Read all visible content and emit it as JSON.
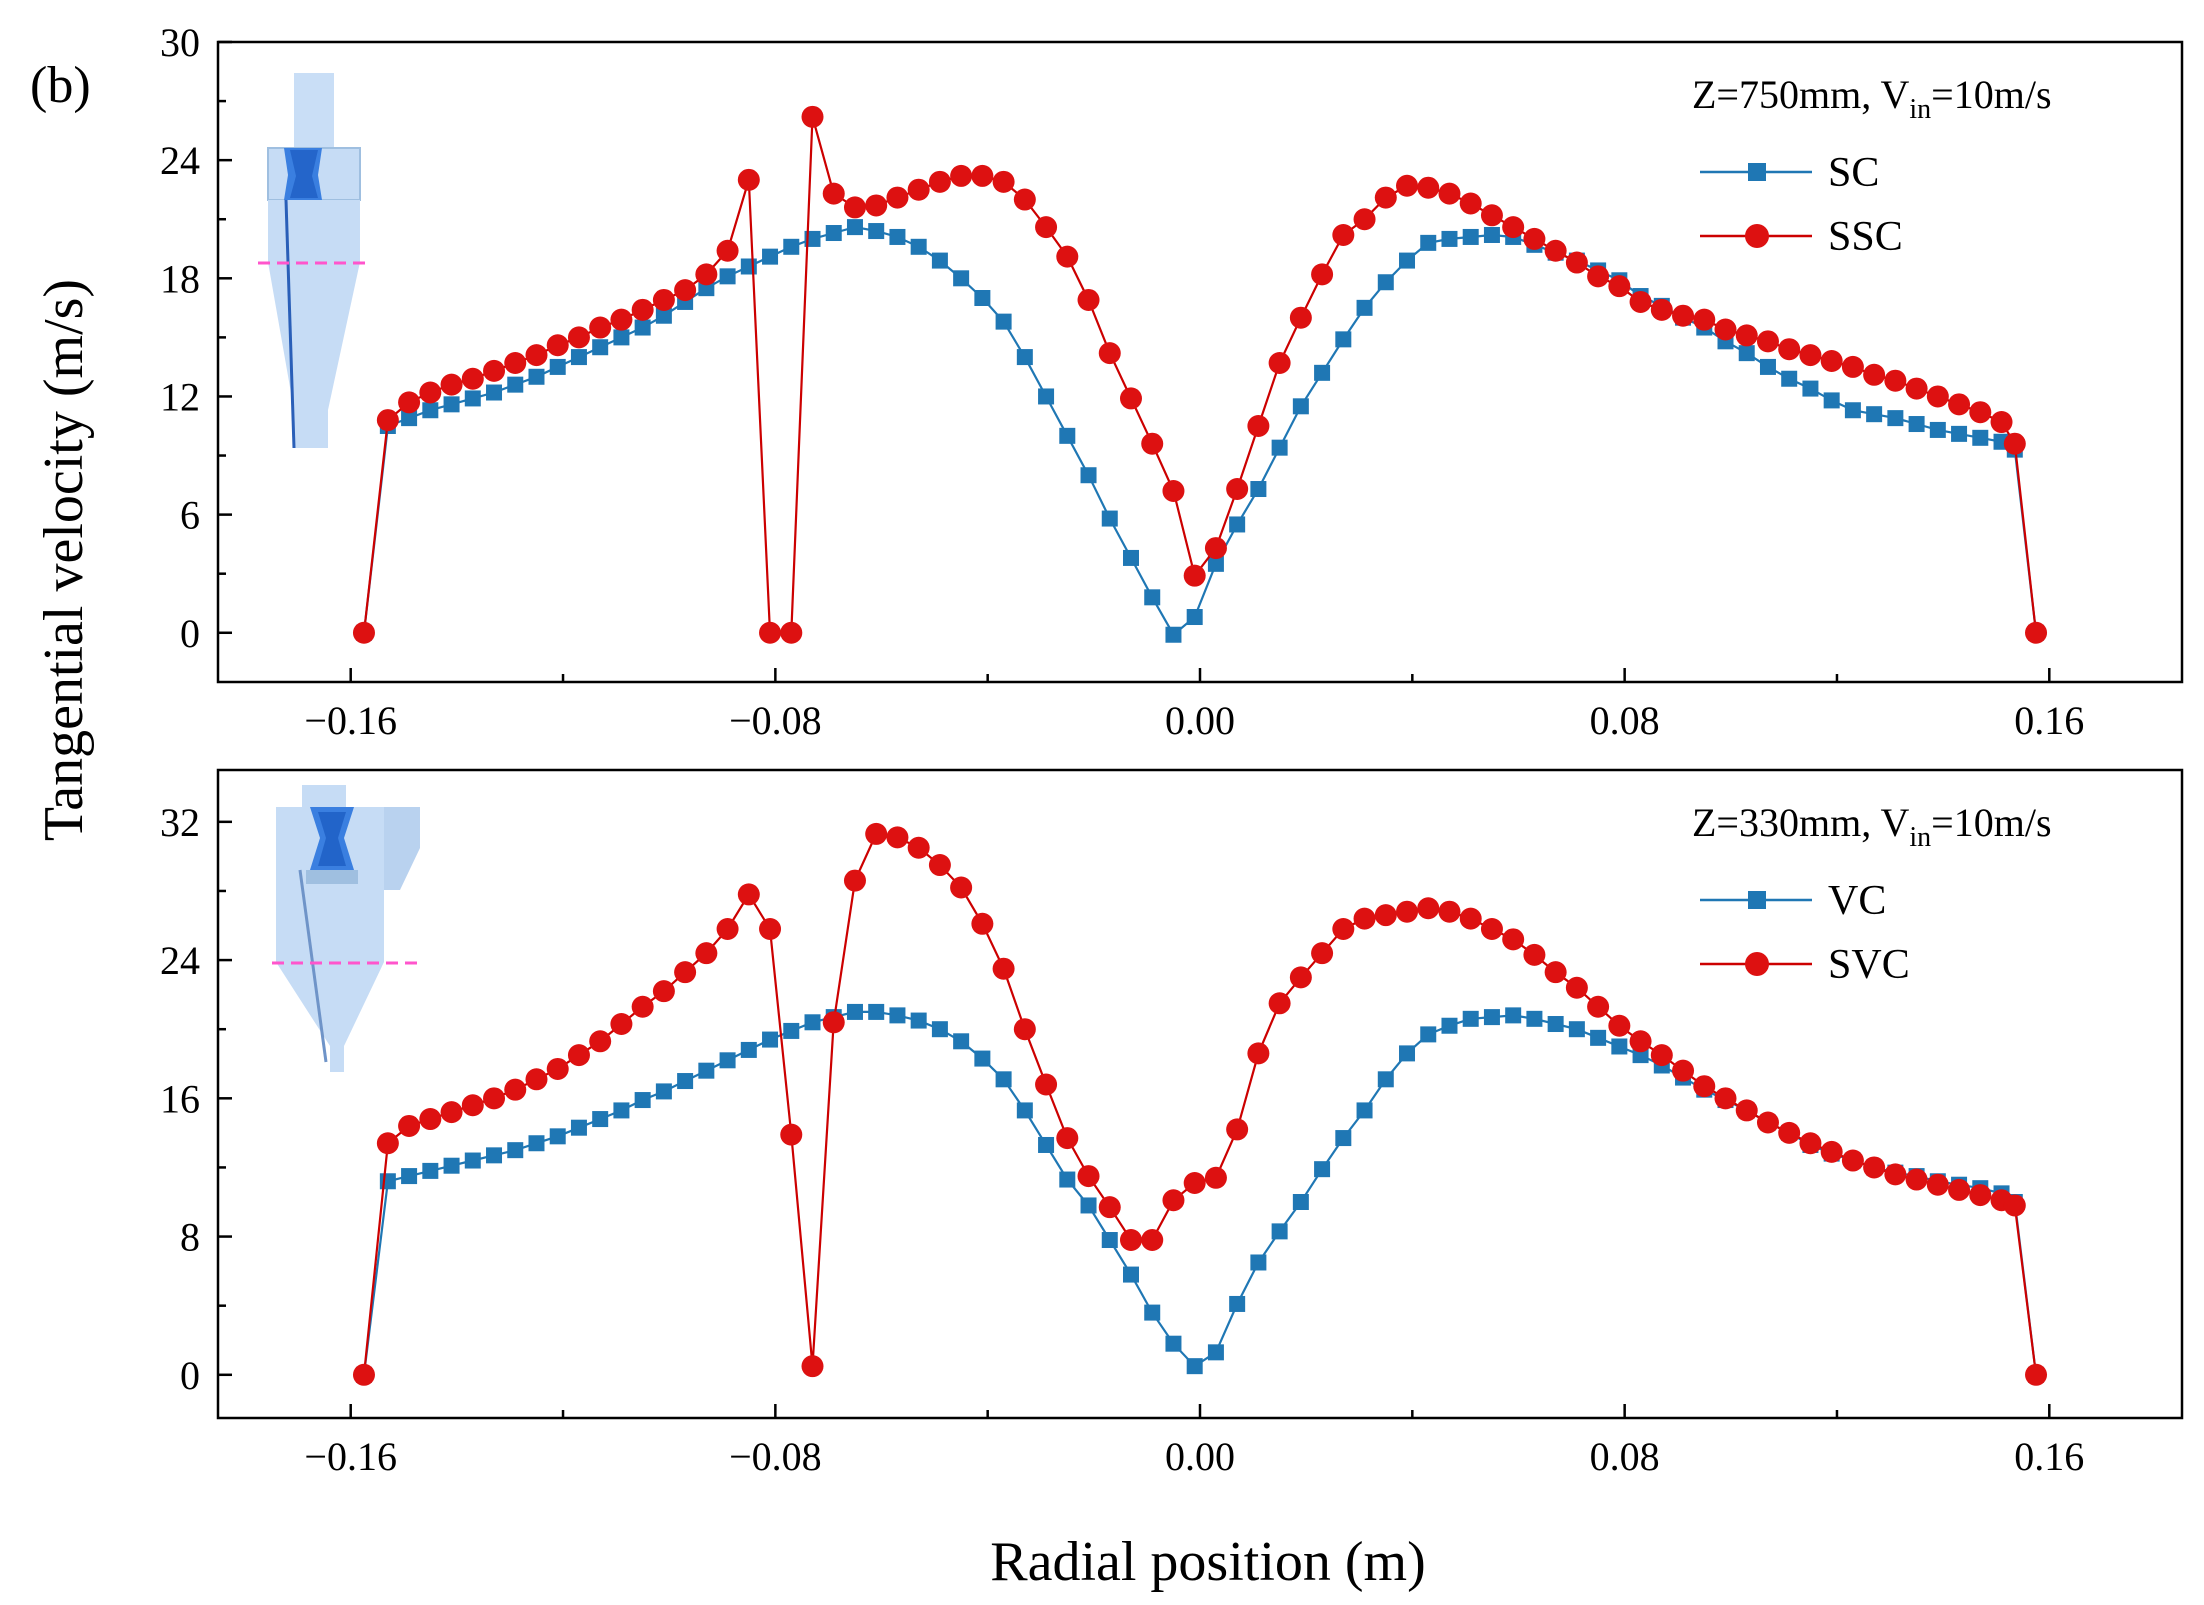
{
  "panel_label": "(b)",
  "ylabel": "Tangential velocity (m/s)",
  "xlabel": "Radial position (m)",
  "colors": {
    "blue": "#1f77b4",
    "red": "#cc0000",
    "marker_red": "#dd1111",
    "inset_body": "#c6dcf5",
    "inset_core": "#3a7fe0",
    "inset_line": "#ff55cc"
  },
  "chart_data": [
    {
      "type": "line",
      "annotation": {
        "prefix": "Z=750mm, V",
        "sub": "in",
        "suffix": "=10m/s"
      },
      "xlim": [
        -0.185,
        0.185
      ],
      "ylim": [
        -2.5,
        30
      ],
      "xticks": [
        -0.16,
        -0.08,
        0.0,
        0.08,
        0.16
      ],
      "xtick_labels": [
        "−0.16",
        "−0.08",
        "0.00",
        "0.08",
        "0.16"
      ],
      "yticks": [
        0,
        6,
        12,
        18,
        24,
        30
      ],
      "ytick_labels": [
        "0",
        "6",
        "12",
        "18",
        "24",
        "30"
      ],
      "legend": [
        "SC",
        "SSC"
      ],
      "series": [
        {
          "name": "SC",
          "marker": "square",
          "color": "blue",
          "x": [
            -0.1575,
            -0.153,
            -0.149,
            -0.145,
            -0.141,
            -0.137,
            -0.133,
            -0.129,
            -0.125,
            -0.121,
            -0.117,
            -0.113,
            -0.109,
            -0.105,
            -0.101,
            -0.097,
            -0.093,
            -0.089,
            -0.085,
            -0.081,
            -0.077,
            -0.073,
            -0.069,
            -0.065,
            -0.061,
            -0.057,
            -0.053,
            -0.049,
            -0.045,
            -0.041,
            -0.037,
            -0.033,
            -0.029,
            -0.025,
            -0.021,
            -0.017,
            -0.013,
            -0.009,
            -0.005,
            -0.001,
            0.003,
            0.007,
            0.011,
            0.015,
            0.019,
            0.023,
            0.027,
            0.031,
            0.035,
            0.039,
            0.043,
            0.047,
            0.051,
            0.055,
            0.059,
            0.063,
            0.067,
            0.071,
            0.075,
            0.079,
            0.083,
            0.087,
            0.091,
            0.095,
            0.099,
            0.103,
            0.107,
            0.111,
            0.115,
            0.119,
            0.123,
            0.127,
            0.131,
            0.135,
            0.139,
            0.143,
            0.147,
            0.151,
            0.1535,
            0.1575
          ],
          "y": [
            0,
            10.5,
            10.9,
            11.3,
            11.6,
            11.9,
            12.2,
            12.6,
            13.0,
            13.5,
            14.0,
            14.5,
            15.0,
            15.5,
            16.1,
            16.8,
            17.5,
            18.1,
            18.6,
            19.1,
            19.6,
            20.0,
            20.3,
            20.6,
            20.4,
            20.1,
            19.6,
            18.9,
            18.0,
            17.0,
            15.8,
            14.0,
            12.0,
            10.0,
            8.0,
            5.8,
            3.8,
            1.8,
            -0.1,
            0.8,
            3.5,
            5.5,
            7.3,
            9.4,
            11.5,
            13.2,
            14.9,
            16.5,
            17.8,
            18.9,
            19.8,
            20.0,
            20.1,
            20.2,
            20.1,
            19.7,
            19.3,
            18.9,
            18.4,
            17.9,
            17.1,
            16.6,
            16.0,
            15.5,
            14.8,
            14.2,
            13.5,
            12.9,
            12.4,
            11.8,
            11.3,
            11.1,
            10.9,
            10.6,
            10.3,
            10.1,
            9.9,
            9.7,
            9.3,
            0
          ]
        },
        {
          "name": "SSC",
          "marker": "circle",
          "color": "red",
          "x": [
            -0.1575,
            -0.153,
            -0.149,
            -0.145,
            -0.141,
            -0.137,
            -0.133,
            -0.129,
            -0.125,
            -0.121,
            -0.117,
            -0.113,
            -0.109,
            -0.105,
            -0.101,
            -0.097,
            -0.093,
            -0.089,
            -0.085,
            -0.081,
            -0.077,
            -0.073,
            -0.069,
            -0.065,
            -0.061,
            -0.057,
            -0.053,
            -0.049,
            -0.045,
            -0.041,
            -0.037,
            -0.033,
            -0.029,
            -0.025,
            -0.021,
            -0.017,
            -0.013,
            -0.009,
            -0.005,
            -0.001,
            0.003,
            0.007,
            0.011,
            0.015,
            0.019,
            0.023,
            0.027,
            0.031,
            0.035,
            0.039,
            0.043,
            0.047,
            0.051,
            0.055,
            0.059,
            0.063,
            0.067,
            0.071,
            0.075,
            0.079,
            0.083,
            0.087,
            0.091,
            0.095,
            0.099,
            0.103,
            0.107,
            0.111,
            0.115,
            0.119,
            0.123,
            0.127,
            0.131,
            0.135,
            0.139,
            0.143,
            0.147,
            0.151,
            0.1535,
            0.1575
          ],
          "y": [
            0,
            10.8,
            11.7,
            12.2,
            12.6,
            12.9,
            13.3,
            13.7,
            14.1,
            14.6,
            15.0,
            15.5,
            15.9,
            16.4,
            16.9,
            17.4,
            18.2,
            19.4,
            23.0,
            0,
            0,
            26.2,
            22.3,
            21.6,
            21.7,
            22.1,
            22.5,
            22.9,
            23.2,
            23.2,
            22.9,
            22.0,
            20.6,
            19.1,
            16.9,
            14.2,
            11.9,
            9.6,
            7.2,
            2.9,
            4.3,
            7.3,
            10.5,
            13.7,
            16.0,
            18.2,
            20.2,
            21.0,
            22.1,
            22.7,
            22.6,
            22.3,
            21.8,
            21.2,
            20.6,
            20.0,
            19.4,
            18.8,
            18.1,
            17.6,
            16.8,
            16.4,
            16.1,
            15.9,
            15.4,
            15.1,
            14.8,
            14.4,
            14.1,
            13.8,
            13.5,
            13.1,
            12.8,
            12.4,
            12.0,
            11.6,
            11.2,
            10.7,
            9.6,
            0
          ]
        }
      ]
    },
    {
      "type": "line",
      "annotation": {
        "prefix": "Z=330mm, V",
        "sub": "in",
        "suffix": "=10m/s"
      },
      "xlim": [
        -0.185,
        0.185
      ],
      "ylim": [
        -2.5,
        35
      ],
      "xticks": [
        -0.16,
        -0.08,
        0.0,
        0.08,
        0.16
      ],
      "xtick_labels": [
        "−0.16",
        "−0.08",
        "0.00",
        "0.08",
        "0.16"
      ],
      "yticks": [
        0,
        8,
        16,
        24,
        32
      ],
      "ytick_labels": [
        "0",
        "8",
        "16",
        "24",
        "32"
      ],
      "legend": [
        "VC",
        "SVC"
      ],
      "series": [
        {
          "name": "VC",
          "marker": "square",
          "color": "blue",
          "x": [
            -0.1575,
            -0.153,
            -0.149,
            -0.145,
            -0.141,
            -0.137,
            -0.133,
            -0.129,
            -0.125,
            -0.121,
            -0.117,
            -0.113,
            -0.109,
            -0.105,
            -0.101,
            -0.097,
            -0.093,
            -0.089,
            -0.085,
            -0.081,
            -0.077,
            -0.073,
            -0.069,
            -0.065,
            -0.061,
            -0.057,
            -0.053,
            -0.049,
            -0.045,
            -0.041,
            -0.037,
            -0.033,
            -0.029,
            -0.025,
            -0.021,
            -0.017,
            -0.013,
            -0.009,
            -0.005,
            -0.001,
            0.003,
            0.007,
            0.011,
            0.015,
            0.019,
            0.023,
            0.027,
            0.031,
            0.035,
            0.039,
            0.043,
            0.047,
            0.051,
            0.055,
            0.059,
            0.063,
            0.067,
            0.071,
            0.075,
            0.079,
            0.083,
            0.087,
            0.091,
            0.095,
            0.099,
            0.103,
            0.107,
            0.111,
            0.115,
            0.119,
            0.123,
            0.127,
            0.131,
            0.135,
            0.139,
            0.143,
            0.147,
            0.151,
            0.1535,
            0.1575
          ],
          "y": [
            0,
            11.2,
            11.5,
            11.8,
            12.1,
            12.4,
            12.7,
            13.0,
            13.4,
            13.8,
            14.3,
            14.8,
            15.3,
            15.9,
            16.4,
            17.0,
            17.6,
            18.2,
            18.8,
            19.4,
            19.9,
            20.4,
            20.7,
            21.0,
            21.0,
            20.8,
            20.5,
            20.0,
            19.3,
            18.3,
            17.1,
            15.3,
            13.3,
            11.3,
            9.8,
            7.8,
            5.8,
            3.6,
            1.8,
            0.5,
            1.3,
            4.1,
            6.5,
            8.3,
            10.0,
            11.9,
            13.7,
            15.3,
            17.1,
            18.6,
            19.7,
            20.2,
            20.6,
            20.7,
            20.8,
            20.6,
            20.3,
            20.0,
            19.5,
            19.0,
            18.5,
            17.9,
            17.2,
            16.5,
            15.9,
            15.3,
            14.6,
            14.0,
            13.3,
            12.8,
            12.4,
            12.0,
            11.7,
            11.5,
            11.2,
            11.0,
            10.8,
            10.5,
            10.0,
            0
          ]
        },
        {
          "name": "SVC",
          "marker": "circle",
          "color": "red",
          "x": [
            -0.1575,
            -0.153,
            -0.149,
            -0.145,
            -0.141,
            -0.137,
            -0.133,
            -0.129,
            -0.125,
            -0.121,
            -0.117,
            -0.113,
            -0.109,
            -0.105,
            -0.101,
            -0.097,
            -0.093,
            -0.089,
            -0.085,
            -0.081,
            -0.077,
            -0.073,
            -0.069,
            -0.065,
            -0.061,
            -0.057,
            -0.053,
            -0.049,
            -0.045,
            -0.041,
            -0.037,
            -0.033,
            -0.029,
            -0.025,
            -0.021,
            -0.017,
            -0.013,
            -0.009,
            -0.005,
            -0.001,
            0.003,
            0.007,
            0.011,
            0.015,
            0.019,
            0.023,
            0.027,
            0.031,
            0.035,
            0.039,
            0.043,
            0.047,
            0.051,
            0.055,
            0.059,
            0.063,
            0.067,
            0.071,
            0.075,
            0.079,
            0.083,
            0.087,
            0.091,
            0.095,
            0.099,
            0.103,
            0.107,
            0.111,
            0.115,
            0.119,
            0.123,
            0.127,
            0.131,
            0.135,
            0.139,
            0.143,
            0.147,
            0.151,
            0.1535,
            0.1575
          ],
          "y": [
            0,
            13.4,
            14.4,
            14.8,
            15.2,
            15.6,
            16.0,
            16.5,
            17.1,
            17.7,
            18.5,
            19.3,
            20.3,
            21.3,
            22.2,
            23.3,
            24.4,
            25.8,
            27.8,
            25.8,
            13.9,
            0.5,
            20.4,
            28.6,
            31.3,
            31.1,
            30.5,
            29.5,
            28.2,
            26.1,
            23.5,
            20.0,
            16.8,
            13.7,
            11.5,
            9.7,
            7.8,
            7.8,
            10.1,
            11.1,
            11.4,
            14.2,
            18.6,
            21.5,
            23.0,
            24.4,
            25.8,
            26.4,
            26.6,
            26.8,
            27.0,
            26.8,
            26.4,
            25.8,
            25.2,
            24.3,
            23.3,
            22.4,
            21.3,
            20.2,
            19.3,
            18.5,
            17.6,
            16.7,
            16.0,
            15.3,
            14.6,
            14.0,
            13.4,
            12.9,
            12.4,
            12.0,
            11.6,
            11.3,
            11.0,
            10.7,
            10.4,
            10.1,
            9.8,
            0
          ]
        }
      ]
    }
  ]
}
